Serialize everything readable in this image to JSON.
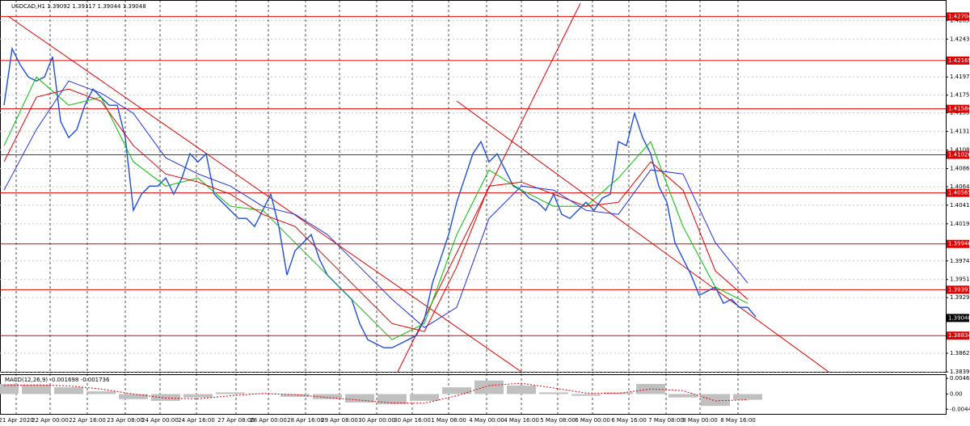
{
  "chart_data": [
    {
      "type": "line",
      "title": "USDCAD,H1  1.39092 1.39117 1.39044 1.39048",
      "xlim": [
        -0.5,
        116.5
      ],
      "ylim": [
        1.38395,
        1.42825
      ],
      "yticks": [
        {
          "value": 1.42655,
          "label": "1.42655"
        },
        {
          "value": 1.4243,
          "label": "1.42430"
        },
        {
          "value": 1.4197,
          "label": "1.41970"
        },
        {
          "value": 1.4175,
          "label": "1.41750"
        },
        {
          "value": 1.41535,
          "label": "1.41535"
        },
        {
          "value": 1.4131,
          "label": "1.41310"
        },
        {
          "value": 1.41085,
          "label": "1.41085"
        },
        {
          "value": 1.4086,
          "label": "1.40860"
        },
        {
          "value": 1.4064,
          "label": "1.40640"
        },
        {
          "value": 1.40415,
          "label": "1.40415"
        },
        {
          "value": 1.4019,
          "label": "1.40190"
        },
        {
          "value": 1.3974,
          "label": "1.39740"
        },
        {
          "value": 1.39515,
          "label": "1.39515"
        },
        {
          "value": 1.39295,
          "label": "1.39295"
        },
        {
          "value": 1.3862,
          "label": "1.38620"
        },
        {
          "value": 1.38395,
          "label": "1.38395"
        }
      ],
      "xticks": [
        {
          "value": 1.5,
          "label": "21 Apr 2020"
        },
        {
          "value": 5.7,
          "label": "22 Apr 00:00"
        },
        {
          "value": 10.3,
          "label": "22 Apr 16:00"
        },
        {
          "value": 15,
          "label": "23 Apr 08:00"
        },
        {
          "value": 19.3,
          "label": "24 Apr 00:00"
        },
        {
          "value": 23.8,
          "label": "24 Apr 16:00"
        },
        {
          "value": 28.7,
          "label": "27 Apr 08:00"
        },
        {
          "value": 32.7,
          "label": "28 Apr 00:00"
        },
        {
          "value": 37.3,
          "label": "28 Apr 16:00"
        },
        {
          "value": 41.5,
          "label": "29 Apr 08:00"
        },
        {
          "value": 46.1,
          "label": "30 Apr 00:00"
        },
        {
          "value": 50.5,
          "label": "30 Apr 16:00"
        },
        {
          "value": 55,
          "label": "1 May 08:00"
        },
        {
          "value": 59.7,
          "label": "4 May 00:00"
        },
        {
          "value": 64,
          "label": "4 May 16:00"
        },
        {
          "value": 68.5,
          "label": "5 May 08:00"
        },
        {
          "value": 72.8,
          "label": "6 May 00:00"
        },
        {
          "value": 77.3,
          "label": "6 May 16:00"
        },
        {
          "value": 81.9,
          "label": "7 May 08:00"
        },
        {
          "value": 86.1,
          "label": "8 May 00:00"
        },
        {
          "value": 90.8,
          "label": "8 May 16:00"
        }
      ],
      "series": [
        {
          "color": "#1f4fd6",
          "width": 1.4,
          "x": [
            0,
            1,
            2,
            3,
            4,
            5,
            6,
            7,
            8,
            9,
            10,
            11,
            12,
            13,
            14,
            15,
            16,
            17,
            18,
            19,
            20,
            21,
            22,
            23,
            24,
            25,
            26,
            27,
            28,
            29,
            30,
            31,
            32,
            33,
            34,
            35,
            36,
            37,
            38,
            39,
            40,
            41,
            42,
            43,
            44,
            45,
            46,
            47,
            48,
            49,
            50,
            51,
            52,
            53,
            54,
            55,
            56,
            57,
            58,
            59,
            60,
            61,
            62,
            63,
            64,
            65,
            66,
            67,
            68,
            69,
            70,
            71,
            72,
            73,
            74,
            75,
            76,
            77,
            78,
            79,
            80,
            81,
            82,
            83,
            84,
            85,
            86,
            87,
            88,
            89,
            90,
            91,
            92,
            93
          ],
          "values": [
            1.41627,
            1.42313,
            1.42117,
            1.4197,
            1.41921,
            1.4197,
            1.42215,
            1.41431,
            1.41235,
            1.41333,
            1.41627,
            1.41823,
            1.41725,
            1.41627,
            1.41627,
            1.41235,
            1.40353,
            1.40549,
            1.40647,
            1.40647,
            1.40745,
            1.40549,
            1.40745,
            1.41039,
            1.40941,
            1.41039,
            1.40549,
            1.40451,
            1.40353,
            1.40255,
            1.40255,
            1.40157,
            1.40353,
            1.40549,
            1.40157,
            1.39569,
            1.39863,
            1.39961,
            1.40059,
            1.39765,
            1.39569,
            1.39471,
            1.39373,
            1.39275,
            1.38981,
            1.38785,
            1.38736,
            1.38687,
            1.38687,
            1.38736,
            1.38785,
            1.38834,
            1.3903,
            1.39471,
            1.39765,
            1.40059,
            1.40451,
            1.40745,
            1.41039,
            1.41186,
            1.40941,
            1.41039,
            1.40843,
            1.40647,
            1.40598,
            1.405,
            1.40451,
            1.40353,
            1.40549,
            1.40304,
            1.40255,
            1.40353,
            1.40451,
            1.40353,
            1.405,
            1.40549,
            1.41186,
            1.41137,
            1.41529,
            1.41235,
            1.41039,
            1.40647,
            1.40451,
            1.39961,
            1.39765,
            1.39569,
            1.39324,
            1.39373,
            1.39422,
            1.39226,
            1.39275,
            1.39177,
            1.39177,
            1.3906
          ]
        },
        {
          "color": "#00c000",
          "width": 1,
          "x": [
            0,
            4,
            8,
            12,
            16,
            20,
            24,
            28,
            32,
            36,
            40,
            44,
            48,
            52,
            56,
            60,
            64,
            68,
            72,
            76,
            80,
            84,
            88,
            92
          ],
          "values": [
            1.41137,
            1.4197,
            1.41627,
            1.41725,
            1.40941,
            1.40647,
            1.40745,
            1.40402,
            1.40353,
            1.39961,
            1.39569,
            1.39177,
            1.38785,
            1.38981,
            1.40059,
            1.40843,
            1.40598,
            1.40402,
            1.40402,
            1.40745,
            1.41186,
            1.40157,
            1.39422,
            1.39226
          ]
        },
        {
          "color": "#e00000",
          "width": 1,
          "x": [
            0,
            4,
            8,
            12,
            16,
            20,
            24,
            28,
            32,
            36,
            40,
            44,
            48,
            52,
            56,
            60,
            64,
            68,
            72,
            76,
            80,
            84,
            88,
            92
          ],
          "values": [
            1.40941,
            1.41725,
            1.41823,
            1.41676,
            1.41137,
            1.40794,
            1.40696,
            1.40549,
            1.40304,
            1.40157,
            1.39765,
            1.39373,
            1.38981,
            1.38883,
            1.39667,
            1.40647,
            1.40696,
            1.40549,
            1.40402,
            1.40451,
            1.40941,
            1.40598,
            1.39618,
            1.39275
          ]
        },
        {
          "color": "#2030e0",
          "width": 1,
          "x": [
            0,
            4,
            8,
            12,
            16,
            20,
            24,
            28,
            32,
            36,
            40,
            44,
            48,
            52,
            56,
            60,
            64,
            68,
            72,
            76,
            80,
            84,
            88,
            92
          ],
          "values": [
            1.40598,
            1.41333,
            1.41921,
            1.41774,
            1.41529,
            1.4099,
            1.40794,
            1.40647,
            1.40402,
            1.40304,
            1.40059,
            1.39667,
            1.39275,
            1.38932,
            1.39177,
            1.40255,
            1.40647,
            1.40598,
            1.40353,
            1.40304,
            1.40843,
            1.40794,
            1.39961,
            1.39471
          ]
        }
      ],
      "levels": {
        "color": "#e00000",
        "values": [
          1.42704,
          1.42169,
          1.41584,
          1.41026,
          1.40565,
          1.39946,
          1.39391,
          1.38834
        ]
      },
      "current_price": 1.39048
    },
    {
      "type": "macd",
      "title": "MACD(12,26,9) -0.001698 -0.001736",
      "xlim": [
        -0.5,
        116.5
      ],
      "ylim": [
        -0.00609,
        0.00585
      ],
      "yticks": [
        0.00463,
        {
          "value": 0,
          "label": "0.00"
        },
        -0.00448
      ],
      "x": [
        0,
        4,
        8,
        12,
        16,
        20,
        24,
        28,
        32,
        36,
        40,
        44,
        48,
        52,
        56,
        60,
        64,
        68,
        72,
        76,
        80,
        84,
        88,
        92
      ],
      "histogram": {
        "color": "#c0c0c0",
        "values": [
          0.003,
          0.0028,
          0.002,
          0.0008,
          -0.0015,
          -0.002,
          -0.001,
          0.0005,
          0.0002,
          -0.0008,
          -0.0015,
          -0.0025,
          -0.003,
          -0.002,
          0.002,
          0.004,
          0.0025,
          0.0005,
          -0.0005,
          0.0005,
          0.003,
          -0.001,
          -0.0035,
          -0.0017
        ]
      },
      "signal": {
        "color": "#e00000",
        "values": [
          0.0025,
          0.0027,
          0.0024,
          0.0015,
          0,
          -0.0012,
          -0.0014,
          -0.0005,
          0.0002,
          -0.0002,
          -0.001,
          -0.0018,
          -0.0026,
          -0.0027,
          -0.0005,
          0.0025,
          0.0032,
          0.0018,
          0.0003,
          0.0002,
          0.0015,
          0.001,
          -0.002,
          -0.0017
        ]
      }
    }
  ]
}
